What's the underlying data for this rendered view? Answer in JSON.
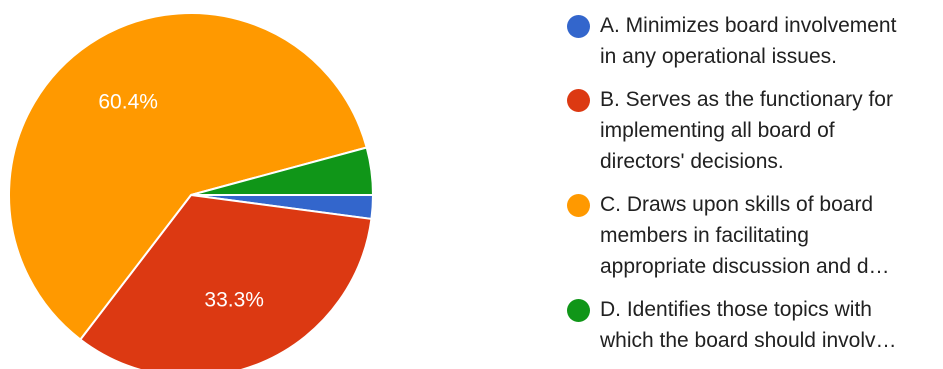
{
  "chart_data": {
    "type": "pie",
    "slices": [
      {
        "label": "A. Minimizes board involvement\nin any operational issues.",
        "value": 2.1,
        "color": "#3366cc",
        "value_label": ""
      },
      {
        "label": "B. Serves as the functionary for\nimplementing all board of\ndirectors' decisions.",
        "value": 33.3,
        "color": "#dc3912",
        "value_label": "33.3%"
      },
      {
        "label": "C. Draws upon skills of board\nmembers in facilitating\nappropriate discussion and d…",
        "value": 60.4,
        "color": "#ff9900",
        "value_label": "60.4%"
      },
      {
        "label": "D. Identifies those topics with\nwhich the board should involv…",
        "value": 4.2,
        "color": "#109618",
        "value_label": ""
      }
    ],
    "legend_position": "right"
  }
}
